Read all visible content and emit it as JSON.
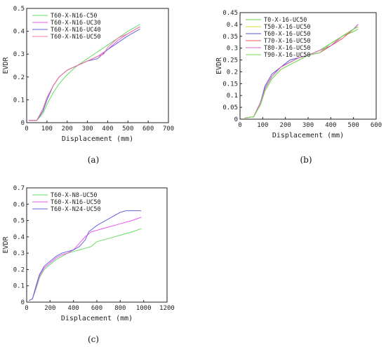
{
  "chart_data": [
    {
      "type": "line",
      "panel_label": "(a)",
      "xlabel": "Displacement (mm)",
      "ylabel": "EVDR",
      "xlim": [
        0,
        700
      ],
      "ylim": [
        0,
        0.5
      ],
      "xticks": [
        0,
        100,
        200,
        300,
        400,
        500,
        600,
        700
      ],
      "yticks": [
        0,
        0.1,
        0.2,
        0.3,
        0.4,
        0.5
      ],
      "legend_position": "top-left",
      "series": [
        {
          "name": "T60-X-N16-C50",
          "color": "#66dd66",
          "x": [
            10,
            50,
            80,
            100,
            130,
            160,
            200,
            250,
            300,
            350,
            400,
            450,
            500,
            560
          ],
          "y": [
            0.01,
            0.01,
            0.04,
            0.08,
            0.13,
            0.17,
            0.21,
            0.25,
            0.28,
            0.31,
            0.34,
            0.37,
            0.4,
            0.43
          ]
        },
        {
          "name": "T60-X-N16-UC30",
          "color": "#ee55ee",
          "x": [
            10,
            50,
            80,
            100,
            130,
            160,
            200,
            250,
            300,
            350,
            400,
            450,
            500,
            560
          ],
          "y": [
            0.01,
            0.01,
            0.05,
            0.1,
            0.16,
            0.2,
            0.23,
            0.25,
            0.27,
            0.29,
            0.32,
            0.36,
            0.39,
            0.42
          ]
        },
        {
          "name": "T60-X-N16-UC40",
          "color": "#6666dd",
          "x": [
            10,
            50,
            80,
            100,
            130,
            160,
            200,
            250,
            300,
            350,
            400,
            450,
            500,
            560
          ],
          "y": [
            0.01,
            0.01,
            0.05,
            0.1,
            0.16,
            0.2,
            0.23,
            0.25,
            0.27,
            0.28,
            0.32,
            0.35,
            0.38,
            0.41
          ]
        },
        {
          "name": "T60-X-N16-UC50",
          "color": "#ee7799",
          "x": [
            10,
            50,
            80,
            100,
            130,
            160,
            200,
            250,
            300,
            350,
            380,
            400,
            450,
            500,
            560
          ],
          "y": [
            0.01,
            0.01,
            0.06,
            0.11,
            0.16,
            0.2,
            0.23,
            0.25,
            0.27,
            0.29,
            0.3,
            0.33,
            0.37,
            0.39,
            0.42
          ]
        }
      ]
    },
    {
      "type": "line",
      "panel_label": "(b)",
      "xlabel": "Displacement (mm)",
      "ylabel": "EVDR",
      "xlim": [
        0,
        600
      ],
      "ylim": [
        0,
        0.45
      ],
      "xticks": [
        0,
        100,
        200,
        300,
        400,
        500,
        600
      ],
      "yticks": [
        0,
        0.05,
        0.1,
        0.15,
        0.2,
        0.25,
        0.3,
        0.35,
        0.4,
        0.45
      ],
      "legend_position": "top-left",
      "series": [
        {
          "name": "T0-X-16-UC50",
          "color": "#66cc44",
          "x": [
            20,
            60,
            90,
            110,
            140,
            180,
            220,
            260,
            300,
            350,
            400,
            450,
            500,
            520
          ],
          "y": [
            0.005,
            0.01,
            0.06,
            0.12,
            0.17,
            0.21,
            0.23,
            0.25,
            0.27,
            0.29,
            0.32,
            0.35,
            0.37,
            0.38
          ]
        },
        {
          "name": "T50-X-16-UC50",
          "color": "#dddd33",
          "x": [
            20,
            60,
            90,
            110,
            140,
            180,
            220,
            260,
            300,
            350,
            400,
            450,
            500,
            520
          ],
          "y": [
            0.005,
            0.01,
            0.07,
            0.13,
            0.18,
            0.22,
            0.24,
            0.26,
            0.27,
            0.29,
            0.31,
            0.35,
            0.38,
            0.39
          ]
        },
        {
          "name": "T60-X-16-UC50",
          "color": "#5555dd",
          "x": [
            20,
            60,
            90,
            110,
            140,
            180,
            220,
            260,
            300,
            350,
            400,
            450,
            500,
            520
          ],
          "y": [
            0.005,
            0.01,
            0.07,
            0.14,
            0.19,
            0.22,
            0.25,
            0.26,
            0.27,
            0.28,
            0.31,
            0.35,
            0.38,
            0.4
          ]
        },
        {
          "name": "T70-X-16-UC50",
          "color": "#ee5555",
          "x": [
            20,
            60,
            90,
            110,
            140,
            180,
            220,
            260,
            300,
            350,
            400,
            450,
            500,
            520
          ],
          "y": [
            0.005,
            0.01,
            0.07,
            0.13,
            0.18,
            0.22,
            0.24,
            0.26,
            0.27,
            0.28,
            0.31,
            0.34,
            0.38,
            0.39
          ]
        },
        {
          "name": "T80-X-16-UC50",
          "color": "#cc66cc",
          "x": [
            20,
            60,
            90,
            110,
            140,
            180,
            220,
            260,
            300,
            350,
            400,
            450,
            500,
            520
          ],
          "y": [
            0.005,
            0.01,
            0.07,
            0.13,
            0.18,
            0.22,
            0.24,
            0.26,
            0.27,
            0.29,
            0.31,
            0.35,
            0.38,
            0.4
          ]
        },
        {
          "name": "T90-X-16-UC50",
          "color": "#77dd55",
          "x": [
            20,
            60,
            90,
            110,
            140,
            180,
            220,
            260,
            300,
            350,
            400,
            450,
            500,
            520
          ],
          "y": [
            0.005,
            0.01,
            0.06,
            0.12,
            0.17,
            0.21,
            0.23,
            0.25,
            0.27,
            0.28,
            0.32,
            0.35,
            0.38,
            0.39
          ]
        }
      ]
    },
    {
      "type": "line",
      "panel_label": "(c)",
      "xlabel": "Displacement (mm)",
      "ylabel": "EVDR",
      "xlim": [
        0,
        1200
      ],
      "ylim": [
        0,
        0.7
      ],
      "xticks": [
        0,
        200,
        400,
        600,
        800,
        1000,
        1200
      ],
      "yticks": [
        0,
        0.1,
        0.2,
        0.3,
        0.4,
        0.5,
        0.6,
        0.7
      ],
      "legend_position": "top-left",
      "series": [
        {
          "name": "T60-X-N8-UC50",
          "color": "#66dd66",
          "x": [
            20,
            50,
            80,
            110,
            150,
            200,
            250,
            300,
            350,
            400,
            450,
            500,
            550,
            600,
            700,
            800,
            900,
            980
          ],
          "y": [
            0.01,
            0.02,
            0.08,
            0.15,
            0.2,
            0.23,
            0.26,
            0.28,
            0.3,
            0.31,
            0.32,
            0.33,
            0.34,
            0.37,
            0.39,
            0.41,
            0.43,
            0.45
          ]
        },
        {
          "name": "T60-X-N16-UC50",
          "color": "#ee55ee",
          "x": [
            20,
            50,
            80,
            110,
            150,
            200,
            250,
            300,
            350,
            400,
            450,
            500,
            550,
            600,
            700,
            800,
            900,
            980
          ],
          "y": [
            0.01,
            0.02,
            0.09,
            0.16,
            0.21,
            0.24,
            0.27,
            0.29,
            0.3,
            0.32,
            0.36,
            0.4,
            0.43,
            0.44,
            0.46,
            0.48,
            0.5,
            0.52
          ]
        },
        {
          "name": "T60-X-N24-UC50",
          "color": "#6666dd",
          "x": [
            20,
            50,
            80,
            110,
            150,
            200,
            250,
            300,
            350,
            400,
            450,
            500,
            530,
            600,
            700,
            800,
            850,
            900,
            980
          ],
          "y": [
            0.01,
            0.02,
            0.1,
            0.17,
            0.22,
            0.25,
            0.28,
            0.3,
            0.31,
            0.32,
            0.34,
            0.38,
            0.43,
            0.47,
            0.51,
            0.55,
            0.56,
            0.56,
            0.56
          ]
        }
      ]
    }
  ]
}
